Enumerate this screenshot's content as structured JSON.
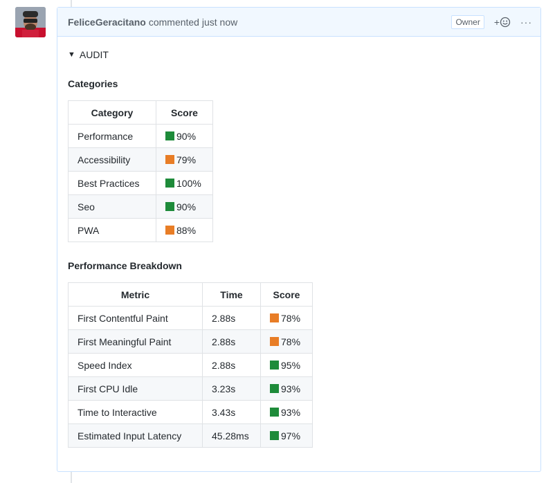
{
  "colors": {
    "good": "#1e8b3a",
    "average": "#e87d26"
  },
  "comment": {
    "author": "FeliceGeracitano",
    "action": "commented just now",
    "badge": "Owner",
    "reaction_plus": "+",
    "menu": "···"
  },
  "audit": {
    "summary": "AUDIT",
    "categories_title": "Categories",
    "categories_headers": [
      "Category",
      "Score"
    ],
    "categories": [
      {
        "name": "Performance",
        "score": "90%",
        "status": "good"
      },
      {
        "name": "Accessibility",
        "score": "79%",
        "status": "average"
      },
      {
        "name": "Best Practices",
        "score": "100%",
        "status": "good"
      },
      {
        "name": "Seo",
        "score": "90%",
        "status": "good"
      },
      {
        "name": "PWA",
        "score": "88%",
        "status": "average"
      }
    ],
    "breakdown_title": "Performance Breakdown",
    "breakdown_headers": [
      "Metric",
      "Time",
      "Score"
    ],
    "metrics": [
      {
        "name": "First Contentful Paint",
        "time": "2.88s",
        "score": "78%",
        "status": "average"
      },
      {
        "name": "First Meaningful Paint",
        "time": "2.88s",
        "score": "78%",
        "status": "average"
      },
      {
        "name": "Speed Index",
        "time": "2.88s",
        "score": "95%",
        "status": "good"
      },
      {
        "name": "First CPU Idle",
        "time": "3.23s",
        "score": "93%",
        "status": "good"
      },
      {
        "name": "Time to Interactive",
        "time": "3.43s",
        "score": "93%",
        "status": "good"
      },
      {
        "name": "Estimated Input Latency",
        "time": "45.28ms",
        "score": "97%",
        "status": "good"
      }
    ]
  }
}
